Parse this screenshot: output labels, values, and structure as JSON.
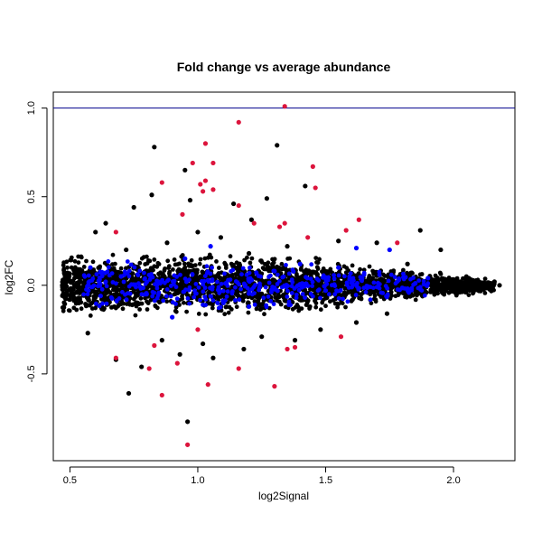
{
  "chart_data": {
    "type": "scatter",
    "title": "Fold change vs average abundance",
    "xlabel": "log2Signal",
    "ylabel": "log2FC",
    "xlim": [
      0.435,
      2.24
    ],
    "ylim": [
      -0.99,
      1.09
    ],
    "x_ticks": [
      {
        "value": 0.5,
        "label": "0.5"
      },
      {
        "value": 1.0,
        "label": "1.0"
      },
      {
        "value": 1.5,
        "label": "1.5"
      },
      {
        "value": 2.0,
        "label": "2.0"
      }
    ],
    "y_ticks": [
      {
        "value": -0.5,
        "label": "-0.5"
      },
      {
        "value": 0.0,
        "label": "0.0"
      },
      {
        "value": 0.5,
        "label": "0.5"
      },
      {
        "value": 1.0,
        "label": "1.0"
      }
    ],
    "reference_lines": [
      {
        "axis": "y",
        "value": 1.0,
        "color": "#00008b"
      }
    ],
    "grid": false,
    "series_colors": {
      "background": "#000000",
      "blue": "#0000ff",
      "red": "#dc143c"
    },
    "series": [
      {
        "color": "#000000",
        "values": [
          [
            0.83,
            0.78
          ],
          [
            1.31,
            0.79
          ],
          [
            0.95,
            0.65
          ],
          [
            0.82,
            0.51
          ],
          [
            1.42,
            0.56
          ],
          [
            0.75,
            0.44
          ],
          [
            0.97,
            0.48
          ],
          [
            1.14,
            0.46
          ],
          [
            1.27,
            0.49
          ],
          [
            1.21,
            0.37
          ],
          [
            0.64,
            0.35
          ],
          [
            1.09,
            0.27
          ],
          [
            1.87,
            0.31
          ],
          [
            0.6,
            0.3
          ],
          [
            1.55,
            0.25
          ],
          [
            1.7,
            0.24
          ],
          [
            1.95,
            0.2
          ],
          [
            0.96,
            -0.77
          ],
          [
            0.73,
            -0.61
          ],
          [
            0.78,
            -0.46
          ],
          [
            0.93,
            -0.39
          ],
          [
            1.06,
            -0.41
          ],
          [
            1.18,
            -0.36
          ],
          [
            1.02,
            -0.33
          ],
          [
            1.25,
            -0.29
          ],
          [
            0.86,
            -0.31
          ],
          [
            0.68,
            -0.42
          ],
          [
            1.48,
            -0.25
          ],
          [
            1.38,
            -0.31
          ],
          [
            0.57,
            -0.27
          ],
          [
            0.5,
            -0.08
          ],
          [
            2.16,
            0.02
          ],
          [
            2.18,
            0.0
          ],
          [
            2.1,
            -0.02
          ],
          [
            2.06,
            0.04
          ],
          [
            0.48,
            0.06
          ],
          [
            0.47,
            0.0
          ],
          [
            1.62,
            -0.21
          ],
          [
            1.74,
            -0.16
          ],
          [
            1.82,
            0.12
          ],
          [
            1.2,
            0.18
          ],
          [
            0.88,
            0.24
          ],
          [
            0.72,
            0.2
          ],
          [
            1.0,
            0.3
          ],
          [
            1.35,
            0.22
          ]
        ]
      },
      {
        "color": "#0000ff",
        "values": [
          [
            0.7,
            0.05
          ],
          [
            0.8,
            -0.05
          ],
          [
            0.95,
            0.15
          ],
          [
            1.1,
            -0.1
          ],
          [
            1.3,
            0.08
          ],
          [
            1.5,
            -0.03
          ],
          [
            1.65,
            0.06
          ],
          [
            1.85,
            0.01
          ],
          [
            1.75,
            0.2
          ],
          [
            0.62,
            -0.06
          ],
          [
            1.05,
            0.22
          ],
          [
            1.4,
            0.12
          ],
          [
            0.9,
            -0.18
          ],
          [
            1.2,
            -0.12
          ],
          [
            1.55,
            0.1
          ],
          [
            0.58,
            0.1
          ],
          [
            1.62,
            0.21
          ],
          [
            1.9,
            0.04
          ]
        ]
      },
      {
        "color": "#dc143c",
        "values": [
          [
            1.34,
            1.01
          ],
          [
            1.16,
            0.92
          ],
          [
            1.03,
            0.8
          ],
          [
            0.98,
            0.69
          ],
          [
            1.06,
            0.69
          ],
          [
            1.03,
            0.59
          ],
          [
            1.45,
            0.67
          ],
          [
            1.01,
            0.57
          ],
          [
            1.06,
            0.54
          ],
          [
            1.46,
            0.55
          ],
          [
            0.86,
            0.58
          ],
          [
            1.02,
            0.53
          ],
          [
            1.16,
            0.45
          ],
          [
            0.94,
            0.4
          ],
          [
            1.22,
            0.35
          ],
          [
            1.34,
            0.35
          ],
          [
            1.32,
            0.33
          ],
          [
            1.63,
            0.37
          ],
          [
            1.58,
            0.31
          ],
          [
            1.43,
            0.27
          ],
          [
            1.78,
            0.24
          ],
          [
            0.68,
            0.3
          ],
          [
            1.04,
            -0.56
          ],
          [
            0.81,
            -0.47
          ],
          [
            0.86,
            -0.62
          ],
          [
            1.16,
            -0.47
          ],
          [
            1.3,
            -0.57
          ],
          [
            0.96,
            -0.9
          ],
          [
            0.83,
            -0.34
          ],
          [
            1.38,
            -0.35
          ],
          [
            1.35,
            -0.36
          ],
          [
            1.56,
            -0.29
          ],
          [
            0.68,
            -0.41
          ],
          [
            0.92,
            -0.44
          ],
          [
            1.0,
            -0.25
          ]
        ]
      }
    ]
  }
}
